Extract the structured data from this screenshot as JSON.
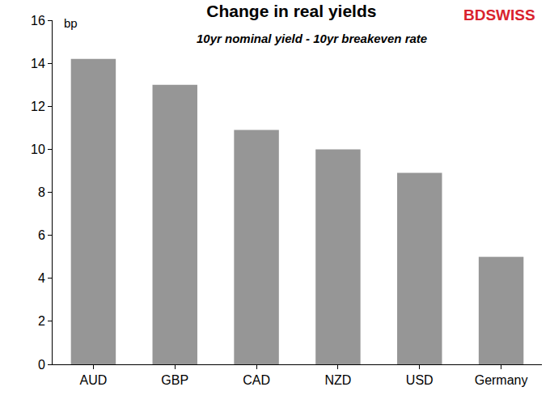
{
  "chart_data": {
    "type": "bar",
    "title": "Change in real yields",
    "subtitle": "10yr nominal yield - 10yr breakeven rate",
    "ylabel": "bp",
    "logo": "BDSWISS",
    "categories": [
      "AUD",
      "GBP",
      "CAD",
      "NZD",
      "USD",
      "Germany"
    ],
    "values": [
      14.2,
      13.0,
      10.9,
      10.0,
      8.9,
      5.0
    ],
    "color": "#969696",
    "ylim": [
      0,
      16
    ],
    "yticks": [
      0,
      2,
      4,
      6,
      8,
      10,
      12,
      14,
      16
    ],
    "grid": false
  }
}
